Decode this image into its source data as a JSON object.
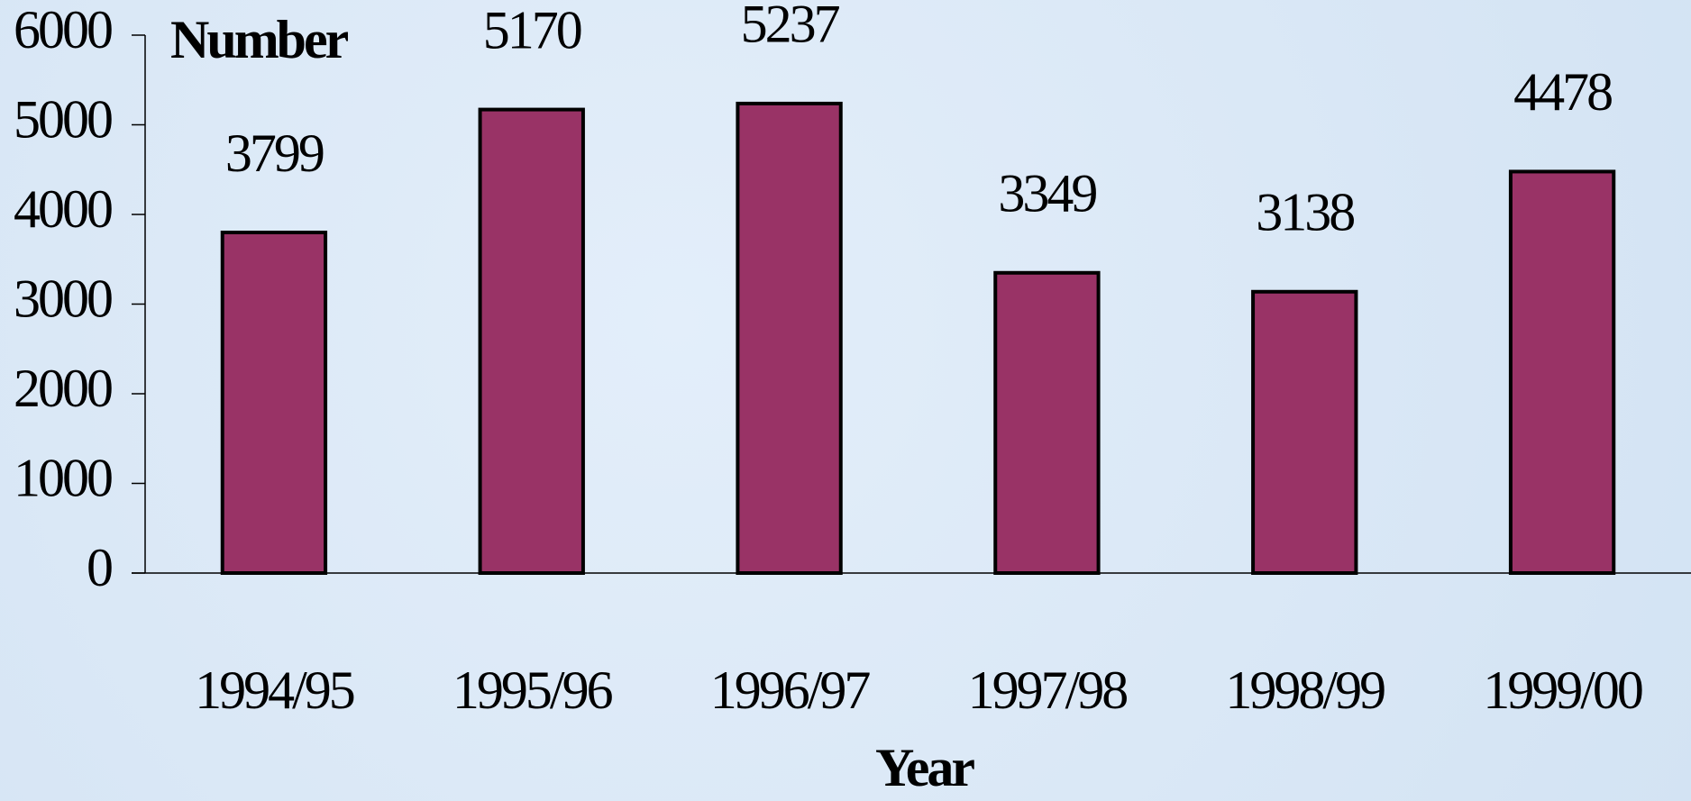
{
  "chart_data": {
    "type": "bar",
    "y_axis_label": "Number",
    "x_axis_label": "Year",
    "categories": [
      "1994/95",
      "1995/96",
      "1996/97",
      "1997/98",
      "1998/99",
      "1999/00"
    ],
    "values": [
      3799,
      5170,
      5237,
      3349,
      3138,
      4478
    ],
    "color": "#993366",
    "ylim": [
      0,
      6000
    ],
    "yticks": [
      0,
      1000,
      2000,
      3000,
      4000,
      5000,
      6000
    ]
  }
}
